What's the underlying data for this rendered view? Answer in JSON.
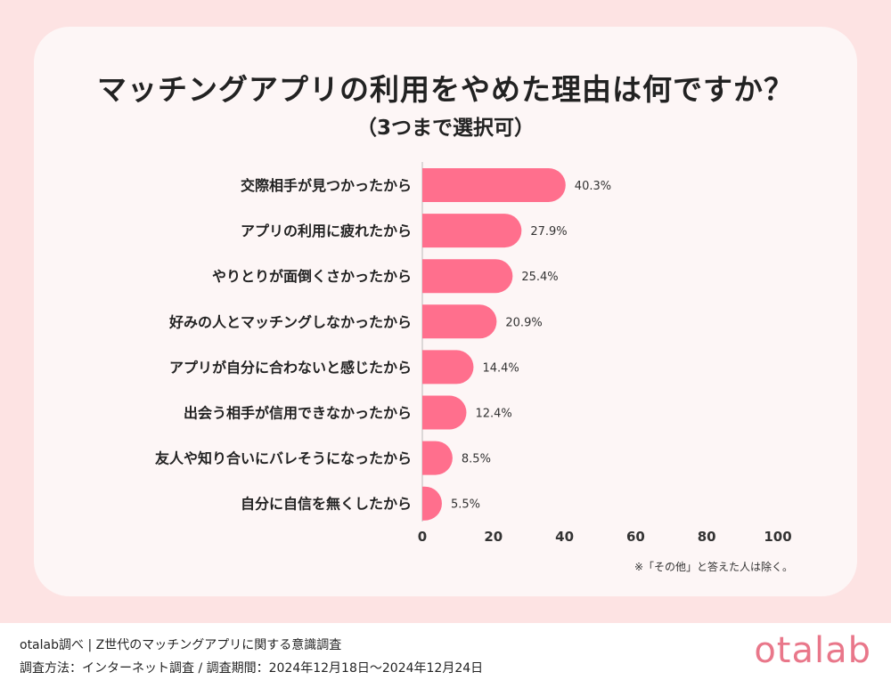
{
  "header": {
    "title": "マッチングアプリの利用をやめた理由は何ですか？",
    "subtitle": "（3つまで選択可）"
  },
  "note": "※「その他」と答えた人は除く。",
  "footer": {
    "line1": "otalab調べ | Z世代のマッチングアプリに関する意識調査",
    "line2": "調査方法：インターネット調査 / 調査期間：2024年12月18日〜2024年12月24日",
    "logo": "otalab"
  },
  "colors": {
    "bar": "#ff6f8d",
    "card": "#fdf6f6",
    "background": "#fde3e3",
    "logo": "#e9778a"
  },
  "chart_data": {
    "type": "bar",
    "orientation": "horizontal",
    "categories": [
      "交際相手が見つかったから",
      "アプリの利用に疲れたから",
      "やりとりが面倒くさかったから",
      "好みの人とマッチングしなかったから",
      "アプリが自分に合わないと感じたから",
      "出会う相手が信用できなかったから",
      "友人や知り合いにバレそうになったから",
      "自分に自信を無くしたから"
    ],
    "values": [
      40.3,
      27.9,
      25.4,
      20.9,
      14.4,
      12.4,
      8.5,
      5.5
    ],
    "value_labels": [
      "40.3%",
      "27.9%",
      "25.4%",
      "20.9%",
      "14.4%",
      "12.4%",
      "8.5%",
      "5.5%"
    ],
    "xlim": [
      0,
      100
    ],
    "xticks": [
      "0",
      "20",
      "40",
      "60",
      "80",
      "100"
    ],
    "grid": false,
    "legend": "none"
  }
}
